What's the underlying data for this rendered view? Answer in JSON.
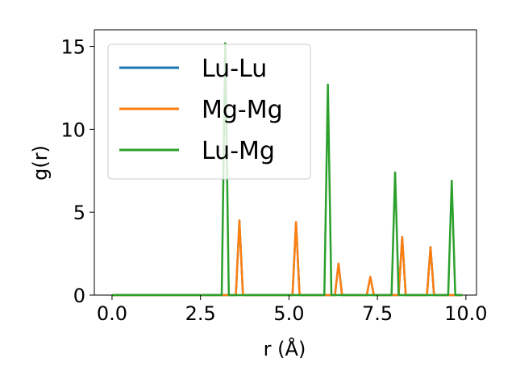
{
  "chart_data": {
    "type": "line",
    "xlabel": "r (Å)",
    "ylabel": "g(r)",
    "xlim": [
      -0.5,
      10.3
    ],
    "ylim": [
      0,
      16
    ],
    "xticks": [
      0.0,
      2.5,
      5.0,
      7.5,
      10.0
    ],
    "xtick_labels": [
      "0.0",
      "2.5",
      "5.0",
      "7.5",
      "10.0"
    ],
    "yticks": [
      0,
      5,
      10,
      15
    ],
    "ytick_labels": [
      "0",
      "5",
      "10",
      "15"
    ],
    "legend_position": "upper-left",
    "grid": false,
    "series": [
      {
        "name": "Lu-Lu",
        "color": "#1f77b4",
        "x": [
          0.0,
          3.5,
          3.6,
          3.7,
          5.1,
          5.2,
          5.3,
          6.3,
          6.4,
          6.5,
          7.2,
          7.3,
          7.4,
          8.1,
          8.2,
          8.3,
          8.9,
          9.0,
          9.1,
          9.9
        ],
        "y": [
          0,
          0,
          4.5,
          0,
          0,
          4.4,
          0,
          0,
          1.9,
          0,
          0,
          1.1,
          0,
          0,
          3.5,
          0,
          0,
          2.9,
          0,
          0
        ]
      },
      {
        "name": "Mg-Mg",
        "color": "#ff7f0e",
        "x": [
          0.0,
          3.5,
          3.6,
          3.7,
          5.1,
          5.2,
          5.3,
          6.3,
          6.4,
          6.5,
          7.2,
          7.3,
          7.4,
          8.1,
          8.2,
          8.3,
          8.9,
          9.0,
          9.1,
          9.9
        ],
        "y": [
          0,
          0,
          4.5,
          0,
          0,
          4.4,
          0,
          0,
          1.9,
          0,
          0,
          1.1,
          0,
          0,
          3.5,
          0,
          0,
          2.9,
          0,
          0
        ]
      },
      {
        "name": "Lu-Mg",
        "color": "#2ca02c",
        "x": [
          0.0,
          3.1,
          3.2,
          3.3,
          6.0,
          6.1,
          6.2,
          7.9,
          8.0,
          8.1,
          9.5,
          9.6,
          9.7,
          9.9
        ],
        "y": [
          0,
          0,
          15.2,
          0,
          0,
          12.7,
          0,
          0,
          7.4,
          0,
          0,
          6.9,
          0,
          0
        ]
      }
    ]
  }
}
